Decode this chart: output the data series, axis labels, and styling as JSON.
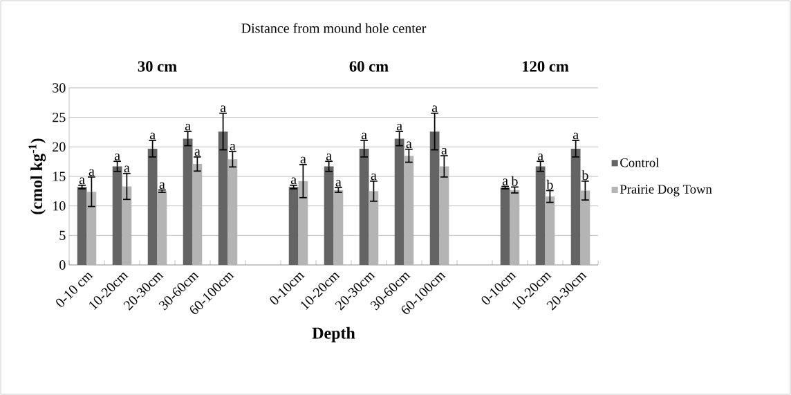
{
  "chart_data": {
    "type": "bar",
    "title": "Distance from mound hole center",
    "xlabel": "Depth",
    "ylabel": "(cmol kg$^{-1}$)",
    "categories": [
      "0-10 cm",
      "10-20cm",
      "20-30cm",
      "30-60cm",
      "60-100cm",
      null,
      "0-10cm",
      "10-20cm",
      "20-30cm",
      "30-60cm",
      "60-100cm",
      null,
      "0-10cm",
      "10-20cm",
      "20-30cm"
    ],
    "series": [
      {
        "name": "Control",
        "color": "#646464",
        "values": [
          13.2,
          16.7,
          19.7,
          21.4,
          22.6,
          null,
          13.2,
          16.7,
          19.7,
          21.4,
          22.6,
          null,
          13.1,
          16.7,
          19.7
        ],
        "errors": [
          0.3,
          0.85,
          1.4,
          1.2,
          3.1,
          null,
          0.3,
          0.85,
          1.4,
          1.2,
          3.1,
          null,
          0.2,
          0.85,
          1.4
        ],
        "value_labels": [
          "a",
          "a",
          "a",
          "a",
          "a",
          null,
          "a",
          "a",
          "a",
          "a",
          "a",
          null,
          "a",
          "a",
          "a"
        ]
      },
      {
        "name": "Prairie Dog Town",
        "color": "#b4b4b4",
        "values": [
          12.4,
          13.3,
          12.5,
          17.1,
          17.9,
          null,
          14.2,
          12.7,
          12.5,
          18.5,
          16.7,
          null,
          12.7,
          11.6,
          12.6
        ],
        "errors": [
          2.5,
          2.2,
          0.2,
          1.2,
          1.3,
          null,
          2.8,
          0.4,
          1.7,
          1.1,
          1.8,
          null,
          0.5,
          1.0,
          1.6
        ],
        "value_labels": [
          "a",
          "a",
          "a",
          "a",
          "a",
          null,
          "a",
          "a",
          "a",
          "a",
          "a",
          null,
          "b",
          "b",
          "b"
        ]
      }
    ],
    "annotations": [
      "30 cm",
      "60 cm",
      "120 cm"
    ],
    "ylim": [
      0,
      30
    ],
    "yticks": [
      0,
      5,
      10,
      15,
      20,
      25,
      30
    ],
    "grid": "y",
    "legend": "right"
  }
}
